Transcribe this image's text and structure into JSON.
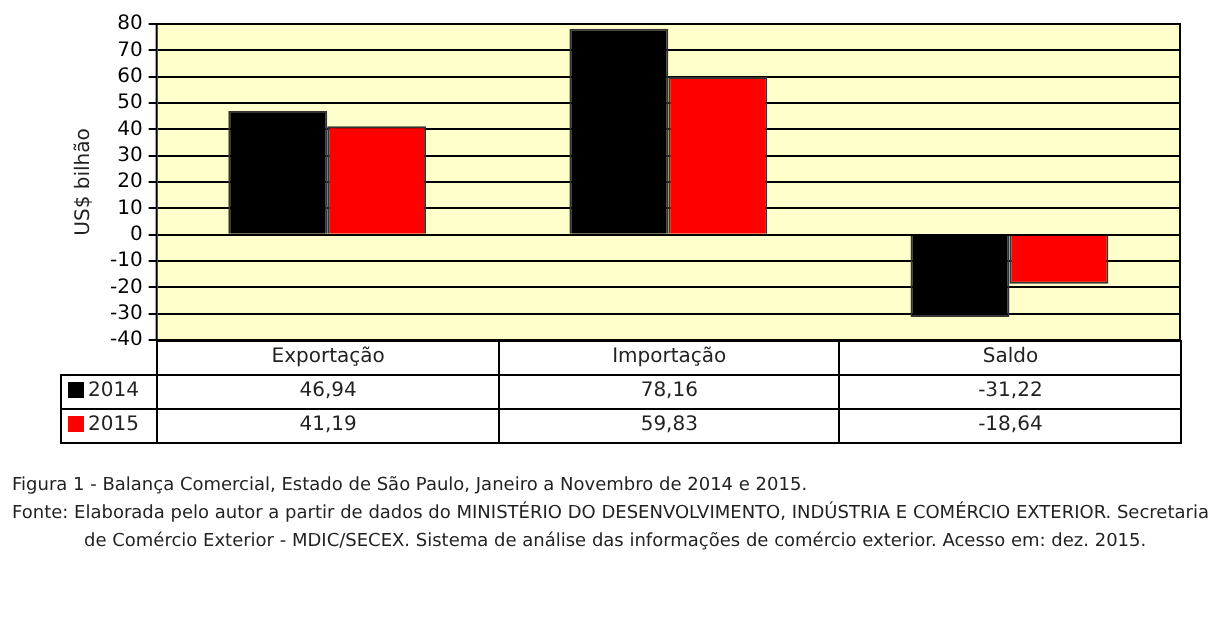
{
  "chart_data": {
    "type": "bar",
    "title": "Figura 1 - Balança Comercial, Estado de São Paulo, Janeiro a Novembro de 2014 e 2015.",
    "ylabel": "US$ bilhão",
    "categories": [
      "Exportação",
      "Importação",
      "Saldo"
    ],
    "series": [
      {
        "name": "2014",
        "color": "#000000",
        "values": [
          46.94,
          78.16,
          -31.22
        ],
        "value_labels": [
          "46,94",
          "78,16",
          "-31,22"
        ]
      },
      {
        "name": "2015",
        "color": "#ff0000",
        "values": [
          41.19,
          59.83,
          -18.64
        ],
        "value_labels": [
          "41,19",
          "59,83",
          "-18,64"
        ]
      }
    ],
    "ylim": [
      -40,
      80
    ],
    "yticks": [
      -40,
      -30,
      -20,
      -10,
      0,
      10,
      20,
      30,
      40,
      50,
      60,
      70,
      80
    ],
    "grid": "y",
    "legend": "bottom",
    "annotations": [
      "Fonte: Elaborada pelo autor a partir de dados do MINISTÉRIO DO DESENVOLVIMENTO, INDÚSTRIA E COMÉRCIO EXTERIOR. Secretaria de Comércio Exterior - MDIC/SECEX. Sistema de análise das informações de comércio exterior. Acesso em: dez. 2015."
    ]
  }
}
